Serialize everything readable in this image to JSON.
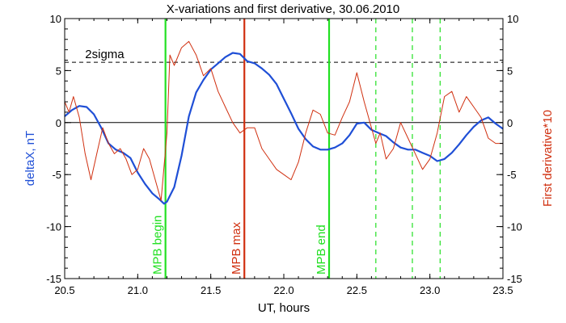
{
  "chart_data": {
    "type": "line",
    "title": "X-variations and first derivative, 30.06.2010",
    "xlabel": "UT, hours",
    "ylabel_left": "deltaX, nT",
    "ylabel_right": "First derivative*10",
    "xlim": [
      20.5,
      23.5
    ],
    "ylim": [
      -15,
      10
    ],
    "y2lim": [
      -15,
      10
    ],
    "grid": false,
    "x_ticks": [
      "20.5",
      "21.0",
      "21.5",
      "22.0",
      "22.5",
      "23.0",
      "23.5"
    ],
    "y_ticks": [
      "-15",
      "-10",
      "-5",
      "0",
      "5",
      "10"
    ],
    "y2_ticks": [
      "-15",
      "-10",
      "-5",
      "0",
      "5",
      "10"
    ],
    "colors": {
      "deltaX": "#1f4fd6",
      "derivative": "#d03010",
      "mpb_boundary": "#22e022",
      "mpb_max": "#d03010",
      "zero_line": "#000000",
      "sigma_line": "#000000"
    },
    "sigma_level": 5.8,
    "sigma_label": "2sigma",
    "zero_level": 0,
    "mpb_lines": [
      {
        "x": 21.19,
        "label": "MPB begin",
        "style": "solid",
        "color": "#22e022"
      },
      {
        "x": 21.73,
        "label": "MPB max",
        "style": "solid",
        "color": "#d03010"
      },
      {
        "x": 22.31,
        "label": "MPB end",
        "style": "solid",
        "color": "#22e022"
      }
    ],
    "dashed_lines": [
      22.63,
      22.88,
      23.07
    ],
    "series": [
      {
        "key": "deltaX",
        "axis": "left",
        "x": [
          20.5,
          20.55,
          20.6,
          20.65,
          20.7,
          20.75,
          20.8,
          20.85,
          20.9,
          20.95,
          21.0,
          21.05,
          21.1,
          21.15,
          21.18,
          21.2,
          21.25,
          21.3,
          21.35,
          21.4,
          21.45,
          21.5,
          21.55,
          21.6,
          21.65,
          21.7,
          21.75,
          21.8,
          21.85,
          21.9,
          21.95,
          22.0,
          22.05,
          22.1,
          22.15,
          22.2,
          22.25,
          22.3,
          22.35,
          22.4,
          22.45,
          22.5,
          22.55,
          22.6,
          22.65,
          22.7,
          22.75,
          22.8,
          22.85,
          22.9,
          22.95,
          23.0,
          23.05,
          23.1,
          23.15,
          23.2,
          23.25,
          23.3,
          23.35,
          23.4,
          23.45,
          23.5
        ],
        "values": [
          0.6,
          1.2,
          1.6,
          1.5,
          0.8,
          -0.5,
          -2.0,
          -2.6,
          -2.9,
          -3.4,
          -4.8,
          -5.9,
          -6.8,
          -7.4,
          -7.8,
          -7.6,
          -6.2,
          -3.2,
          0.6,
          2.9,
          4.1,
          5.1,
          5.7,
          6.3,
          6.7,
          6.6,
          5.9,
          5.7,
          5.2,
          4.6,
          3.7,
          2.3,
          0.9,
          -0.6,
          -1.6,
          -2.3,
          -2.6,
          -2.6,
          -2.4,
          -2.0,
          -1.2,
          -0.1,
          0.0,
          -0.7,
          -1.0,
          -1.3,
          -1.9,
          -2.4,
          -2.6,
          -2.6,
          -2.9,
          -3.2,
          -3.7,
          -3.5,
          -2.9,
          -2.1,
          -1.2,
          -0.4,
          0.2,
          0.5,
          -0.1,
          -0.6
        ]
      },
      {
        "key": "derivative",
        "axis": "right",
        "x": [
          20.5,
          20.53,
          20.56,
          20.6,
          20.64,
          20.68,
          20.72,
          20.76,
          20.8,
          20.84,
          20.88,
          20.92,
          20.96,
          21.0,
          21.04,
          21.08,
          21.12,
          21.16,
          21.2,
          21.22,
          21.25,
          21.3,
          21.35,
          21.4,
          21.45,
          21.5,
          21.55,
          21.6,
          21.65,
          21.7,
          21.75,
          21.8,
          21.85,
          21.9,
          21.95,
          22.0,
          22.05,
          22.1,
          22.15,
          22.2,
          22.25,
          22.3,
          22.35,
          22.4,
          22.45,
          22.5,
          22.55,
          22.6,
          22.63,
          22.66,
          22.7,
          22.75,
          22.8,
          22.85,
          22.9,
          22.95,
          23.0,
          23.05,
          23.1,
          23.15,
          23.2,
          23.25,
          23.3,
          23.35,
          23.4,
          23.45,
          23.5
        ],
        "values": [
          2.0,
          1.0,
          2.5,
          0.5,
          -3.0,
          -5.5,
          -3.0,
          -0.5,
          -2.0,
          -3.0,
          -2.5,
          -3.5,
          -5.0,
          -4.5,
          -2.5,
          -3.5,
          -5.5,
          -7.5,
          -1.0,
          6.5,
          5.5,
          7.2,
          7.8,
          6.5,
          4.5,
          5.2,
          3.0,
          1.5,
          0.0,
          -1.0,
          -0.5,
          -0.5,
          -2.5,
          -3.5,
          -4.5,
          -5.0,
          -5.5,
          -3.8,
          -1.0,
          1.2,
          0.8,
          -1.0,
          -1.2,
          0.5,
          2.0,
          4.8,
          2.0,
          -0.5,
          -2.0,
          -1.0,
          -3.5,
          -2.5,
          0.0,
          -1.5,
          -3.0,
          -4.5,
          -3.5,
          -1.0,
          2.5,
          3.0,
          1.0,
          2.5,
          1.5,
          0.5,
          -1.5,
          -2.0,
          -2.0
        ]
      }
    ]
  }
}
